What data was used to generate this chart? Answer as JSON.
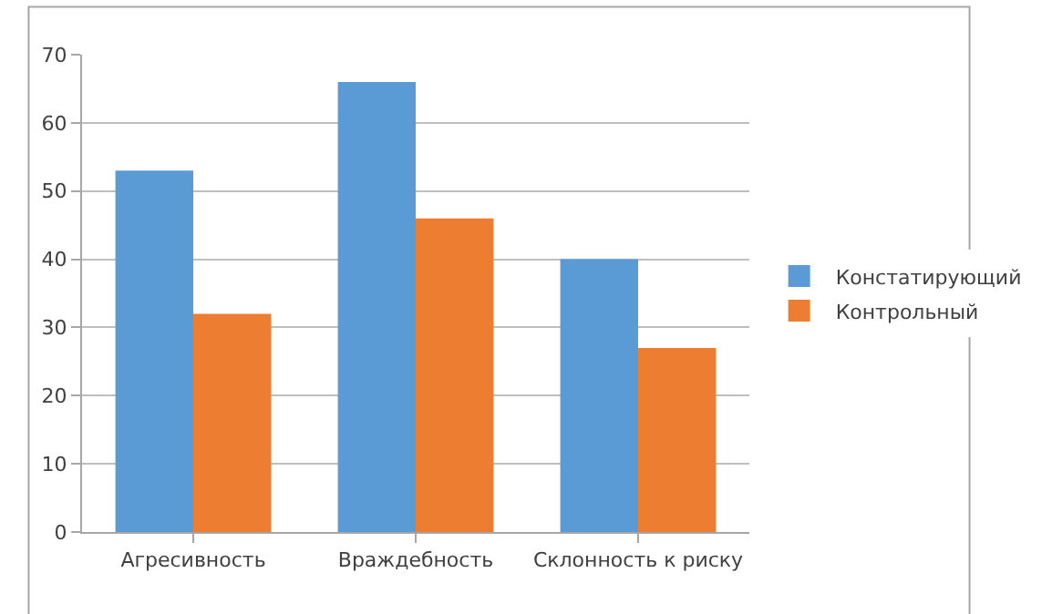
{
  "chart_data": {
    "type": "bar",
    "categories": [
      "Агресивность",
      "Враждебность",
      "Склонность к риску"
    ],
    "series": [
      {
        "name": "Констатирующий",
        "color": "#5b9bd5",
        "values": [
          53,
          66,
          40
        ]
      },
      {
        "name": "Контрольный",
        "color": "#ed7d31",
        "values": [
          32,
          46,
          27
        ]
      }
    ],
    "ylim": [
      0,
      70
    ],
    "yticks": [
      0,
      10,
      20,
      30,
      40,
      50,
      60,
      70
    ],
    "grid": "y",
    "legend": "right"
  }
}
